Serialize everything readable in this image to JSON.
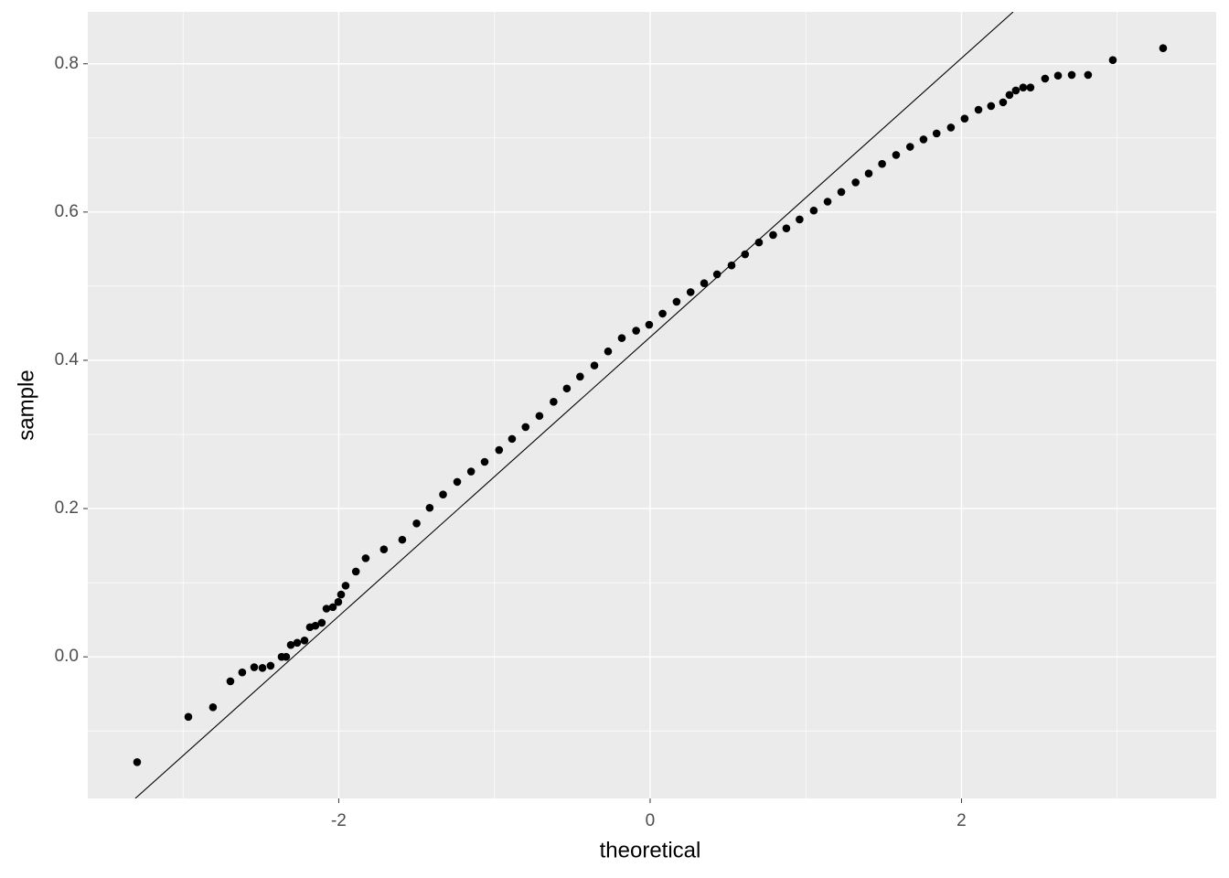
{
  "chart_data": {
    "type": "scatter",
    "x_label": "theoretical",
    "y_label": "sample",
    "x": [
      -3.295,
      -2.966,
      -2.808,
      -2.696,
      -2.62,
      -2.543,
      -2.49,
      -2.438,
      -2.367,
      -2.338,
      -2.308,
      -2.267,
      -2.22,
      -2.185,
      -2.15,
      -2.109,
      -2.079,
      -2.038,
      -2.003,
      -1.985,
      -1.956,
      -1.89,
      -1.827,
      -1.71,
      -1.592,
      -1.5,
      -1.416,
      -1.33,
      -1.239,
      -1.15,
      -1.063,
      -0.97,
      -0.887,
      -0.8,
      -0.711,
      -0.62,
      -0.535,
      -0.45,
      -0.358,
      -0.27,
      -0.182,
      -0.09,
      -0.006,
      0.08,
      0.17,
      0.26,
      0.347,
      0.43,
      0.523,
      0.61,
      0.699,
      0.79,
      0.875,
      0.96,
      1.051,
      1.14,
      1.228,
      1.32,
      1.404,
      1.49,
      1.58,
      1.67,
      1.756,
      1.84,
      1.932,
      2.02,
      2.109,
      2.19,
      2.267,
      2.308,
      2.349,
      2.396,
      2.443,
      2.537,
      2.62,
      2.708,
      2.813,
      2.972,
      3.295
    ],
    "series": [
      {
        "color": "#000000",
        "values": [
          -0.142,
          -0.081,
          -0.068,
          -0.033,
          -0.021,
          -0.014,
          -0.015,
          -0.012,
          0.0,
          0.0,
          0.016,
          0.019,
          0.022,
          0.04,
          0.042,
          0.046,
          0.065,
          0.067,
          0.074,
          0.084,
          0.096,
          0.115,
          0.133,
          0.145,
          0.158,
          0.18,
          0.201,
          0.219,
          0.236,
          0.25,
          0.263,
          0.279,
          0.294,
          0.31,
          0.325,
          0.344,
          0.362,
          0.378,
          0.393,
          0.412,
          0.43,
          0.44,
          0.448,
          0.463,
          0.479,
          0.492,
          0.504,
          0.516,
          0.528,
          0.543,
          0.559,
          0.569,
          0.578,
          0.59,
          0.602,
          0.614,
          0.627,
          0.64,
          0.652,
          0.665,
          0.677,
          0.688,
          0.698,
          0.706,
          0.714,
          0.726,
          0.738,
          0.743,
          0.748,
          0.758,
          0.764,
          0.768,
          0.768,
          0.78,
          0.784,
          0.785,
          0.785,
          0.805,
          0.821
        ]
      }
    ],
    "reference_line": {
      "color": "#000000",
      "x": [
        -3.307,
        2.332
      ],
      "y": [
        -0.191,
        0.87
      ]
    },
    "xlim": [
      -3.612,
      3.636
    ],
    "ylim": [
      -0.191,
      0.87
    ],
    "xticks": [
      -2,
      0,
      2
    ],
    "yticks": [
      {
        "value": 0,
        "label": "0.0"
      },
      0.2,
      0.4,
      0.6,
      0.8
    ],
    "x_minor_grid": [
      -3,
      -1,
      1,
      3
    ],
    "y_minor_grid": [
      -0.1,
      0.1,
      0.3,
      0.5,
      0.7
    ],
    "grid": true
  }
}
